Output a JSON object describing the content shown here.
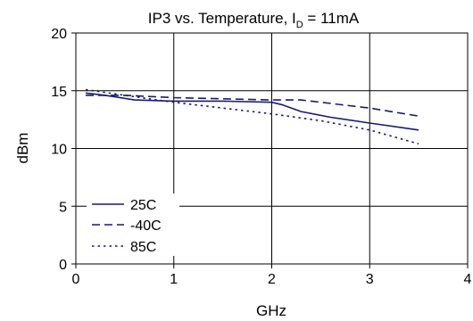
{
  "chart_data": {
    "type": "line",
    "title_main": "IP3 vs. Temperature, I",
    "title_sub": "D",
    "title_tail": " = 11mA",
    "xlabel": "GHz",
    "ylabel": "dBm",
    "xlim": [
      0,
      4
    ],
    "ylim": [
      0,
      20
    ],
    "xticks": [
      0,
      1,
      2,
      3,
      4
    ],
    "yticks": [
      0,
      5,
      10,
      15,
      20
    ],
    "grid": true,
    "legend_position": "bottom-left",
    "series": [
      {
        "name": "25C",
        "style": "solid",
        "x": [
          0.1,
          0.3,
          0.6,
          1.0,
          1.5,
          2.0,
          2.1,
          2.3,
          2.6,
          3.0,
          3.5
        ],
        "y": [
          14.8,
          14.6,
          14.2,
          14.1,
          14.1,
          14.0,
          13.8,
          13.2,
          12.7,
          12.2,
          11.6
        ]
      },
      {
        "name": "-40C",
        "style": "dashed",
        "x": [
          0.1,
          0.5,
          1.0,
          1.5,
          2.0,
          2.3,
          2.6,
          3.0,
          3.5
        ],
        "y": [
          14.6,
          14.6,
          14.4,
          14.3,
          14.2,
          14.2,
          13.9,
          13.5,
          12.8
        ]
      },
      {
        "name": "85C",
        "style": "dotted",
        "x": [
          0.1,
          0.5,
          1.0,
          1.5,
          2.0,
          2.5,
          3.0,
          3.5
        ],
        "y": [
          15.1,
          14.6,
          14.0,
          13.5,
          13.0,
          12.4,
          11.6,
          10.4
        ]
      }
    ]
  }
}
